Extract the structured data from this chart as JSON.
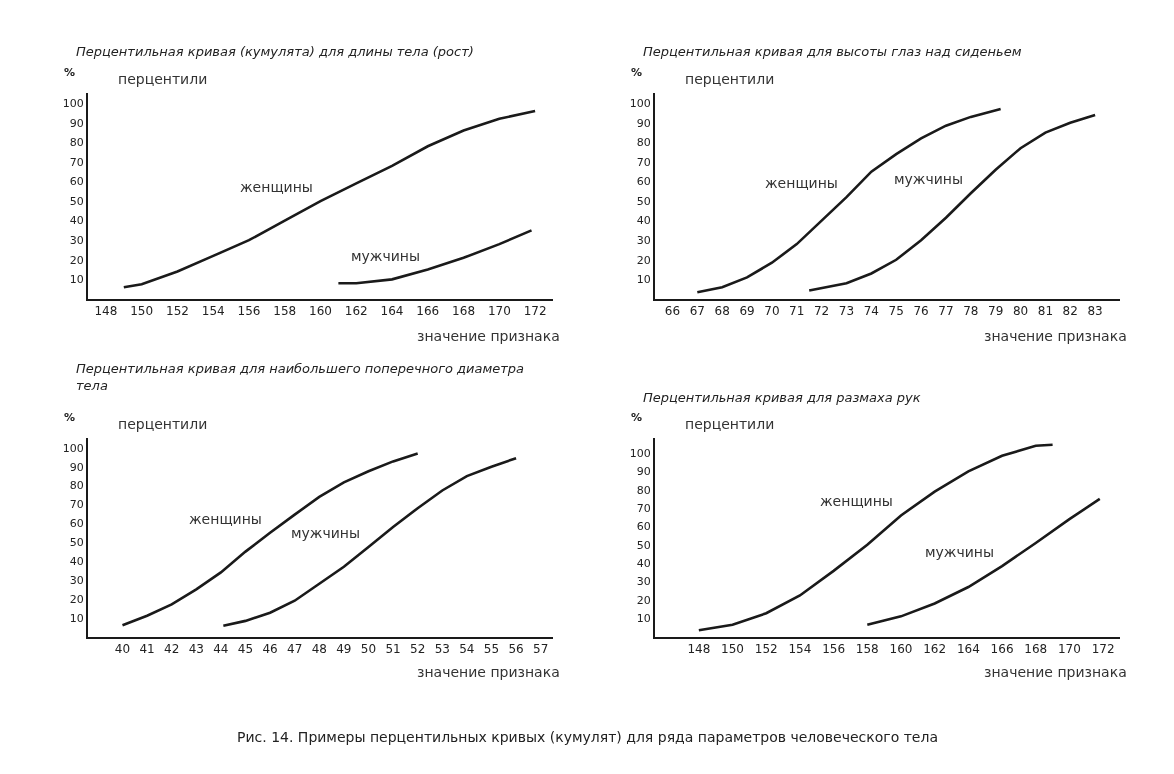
{
  "chart_data": [
    {
      "type": "line",
      "title": "Перцентильная кривая (кумулята) для длины тела (рост)",
      "subtitle": "перцентили",
      "ylabel": "%",
      "xlabel": "значение признака",
      "xlim": [
        147,
        173
      ],
      "xticks": [
        148,
        150,
        152,
        154,
        156,
        158,
        160,
        162,
        164,
        166,
        168,
        170,
        172
      ],
      "ylim": [
        0,
        105
      ],
      "yticks": [
        10,
        20,
        30,
        40,
        50,
        60,
        70,
        80,
        90,
        100
      ],
      "grid": false,
      "legend": false,
      "marker": "none",
      "line_style": "solid",
      "series": [
        {
          "name": "женщины",
          "color": "#1a1a1a",
          "x": [
            149,
            150,
            152,
            154,
            156,
            158,
            160,
            162,
            164,
            166,
            168,
            170,
            172
          ],
          "values": [
            6,
            7.5,
            14,
            22,
            30,
            40,
            50,
            59,
            68,
            78,
            86,
            92,
            96
          ]
        },
        {
          "name": "мужчины",
          "color": "#1a1a1a",
          "x": [
            161,
            162,
            164,
            166,
            168,
            170,
            171.8
          ],
          "values": [
            8,
            8,
            10,
            15,
            21,
            28,
            35
          ]
        }
      ]
    },
    {
      "type": "line",
      "title": "Перцентильная кривая для высоты глаз над сиденьем",
      "subtitle": "перцентили",
      "ylabel": "%",
      "xlabel": "значение признака",
      "xlim": [
        65.3,
        84
      ],
      "xticks": [
        66,
        67,
        68,
        69,
        70,
        71,
        72,
        73,
        74,
        75,
        76,
        77,
        78,
        79,
        80,
        81,
        82,
        83
      ],
      "ylim": [
        0,
        105
      ],
      "yticks": [
        10,
        20,
        30,
        40,
        50,
        60,
        70,
        80,
        90,
        100
      ],
      "grid": false,
      "legend": false,
      "marker": "none",
      "line_style": "solid",
      "series": [
        {
          "name": "женщины",
          "color": "#1a1a1a",
          "x": [
            67,
            68,
            69,
            70,
            71,
            72,
            73,
            74,
            75,
            76,
            77,
            78,
            79.2
          ],
          "values": [
            3.4,
            6,
            11,
            18.5,
            28,
            40,
            52,
            65,
            74,
            82,
            88.5,
            93,
            97
          ]
        },
        {
          "name": "мужчины",
          "color": "#1a1a1a",
          "x": [
            71.5,
            73,
            74,
            75,
            76,
            77,
            78,
            79,
            80,
            81,
            82,
            83
          ],
          "values": [
            4.3,
            8,
            13,
            20,
            30,
            41.5,
            54,
            66,
            77,
            85,
            90,
            94
          ]
        }
      ]
    },
    {
      "type": "line",
      "title": "Перцентильная кривая для наибольшего поперечного диаметра тела",
      "subtitle": "перцентили",
      "ylabel": "%",
      "xlabel": "значение признака",
      "xlim": [
        38.6,
        57.5
      ],
      "xticks": [
        40,
        41,
        42,
        43,
        44,
        45,
        46,
        47,
        48,
        49,
        50,
        51,
        52,
        53,
        54,
        55,
        56,
        57
      ],
      "ylim": [
        0,
        105
      ],
      "yticks": [
        10,
        20,
        30,
        40,
        50,
        60,
        70,
        80,
        90,
        100
      ],
      "grid": false,
      "legend": false,
      "marker": "none",
      "line_style": "solid",
      "series": [
        {
          "name": "женщины",
          "color": "#1a1a1a",
          "x": [
            40,
            41,
            42,
            43,
            44,
            45,
            46,
            47,
            48,
            49,
            50,
            51,
            52
          ],
          "values": [
            6,
            11,
            17,
            25,
            34,
            45,
            55,
            64.6,
            74,
            81.7,
            87.6,
            92.8,
            97
          ]
        },
        {
          "name": "мужчины",
          "color": "#1a1a1a",
          "x": [
            44.1,
            45,
            46,
            47,
            48,
            49,
            50,
            51,
            52,
            53,
            54,
            55,
            56
          ],
          "values": [
            5.7,
            8.3,
            12.6,
            19,
            28,
            37,
            47.5,
            58,
            68,
            77.4,
            85,
            90,
            94.5
          ]
        }
      ]
    },
    {
      "type": "line",
      "title": "Перцентильная кривая для размаха рук",
      "subtitle": "перцентили",
      "ylabel": "%",
      "xlabel": "значение признака",
      "xlim": [
        145.4,
        173
      ],
      "xticks": [
        148,
        150,
        152,
        154,
        156,
        158,
        160,
        162,
        164,
        166,
        168,
        170,
        172
      ],
      "ylim": [
        0,
        108
      ],
      "yticks": [
        10,
        20,
        30,
        40,
        50,
        60,
        70,
        80,
        90,
        100
      ],
      "grid": false,
      "legend": false,
      "marker": "none",
      "line_style": "solid",
      "annotations": [
        "Рис. 14. Примеры перцентильных кривых (кумулят) для ряда параметров человеческого тела"
      ],
      "series": [
        {
          "name": "женщины",
          "color": "#1a1a1a",
          "x": [
            148,
            150,
            152,
            154,
            156,
            158,
            160,
            162,
            164,
            166,
            168,
            169
          ],
          "values": [
            3.4,
            6.4,
            12.7,
            22.4,
            35.8,
            50,
            66,
            79,
            90,
            98.5,
            104,
            104.5
          ]
        },
        {
          "name": "мужчины",
          "color": "#1a1a1a",
          "x": [
            158,
            160,
            162,
            164,
            166,
            168,
            170,
            171.8
          ],
          "values": [
            6.4,
            11,
            18,
            27,
            38.4,
            51,
            64,
            75
          ]
        }
      ]
    }
  ]
}
